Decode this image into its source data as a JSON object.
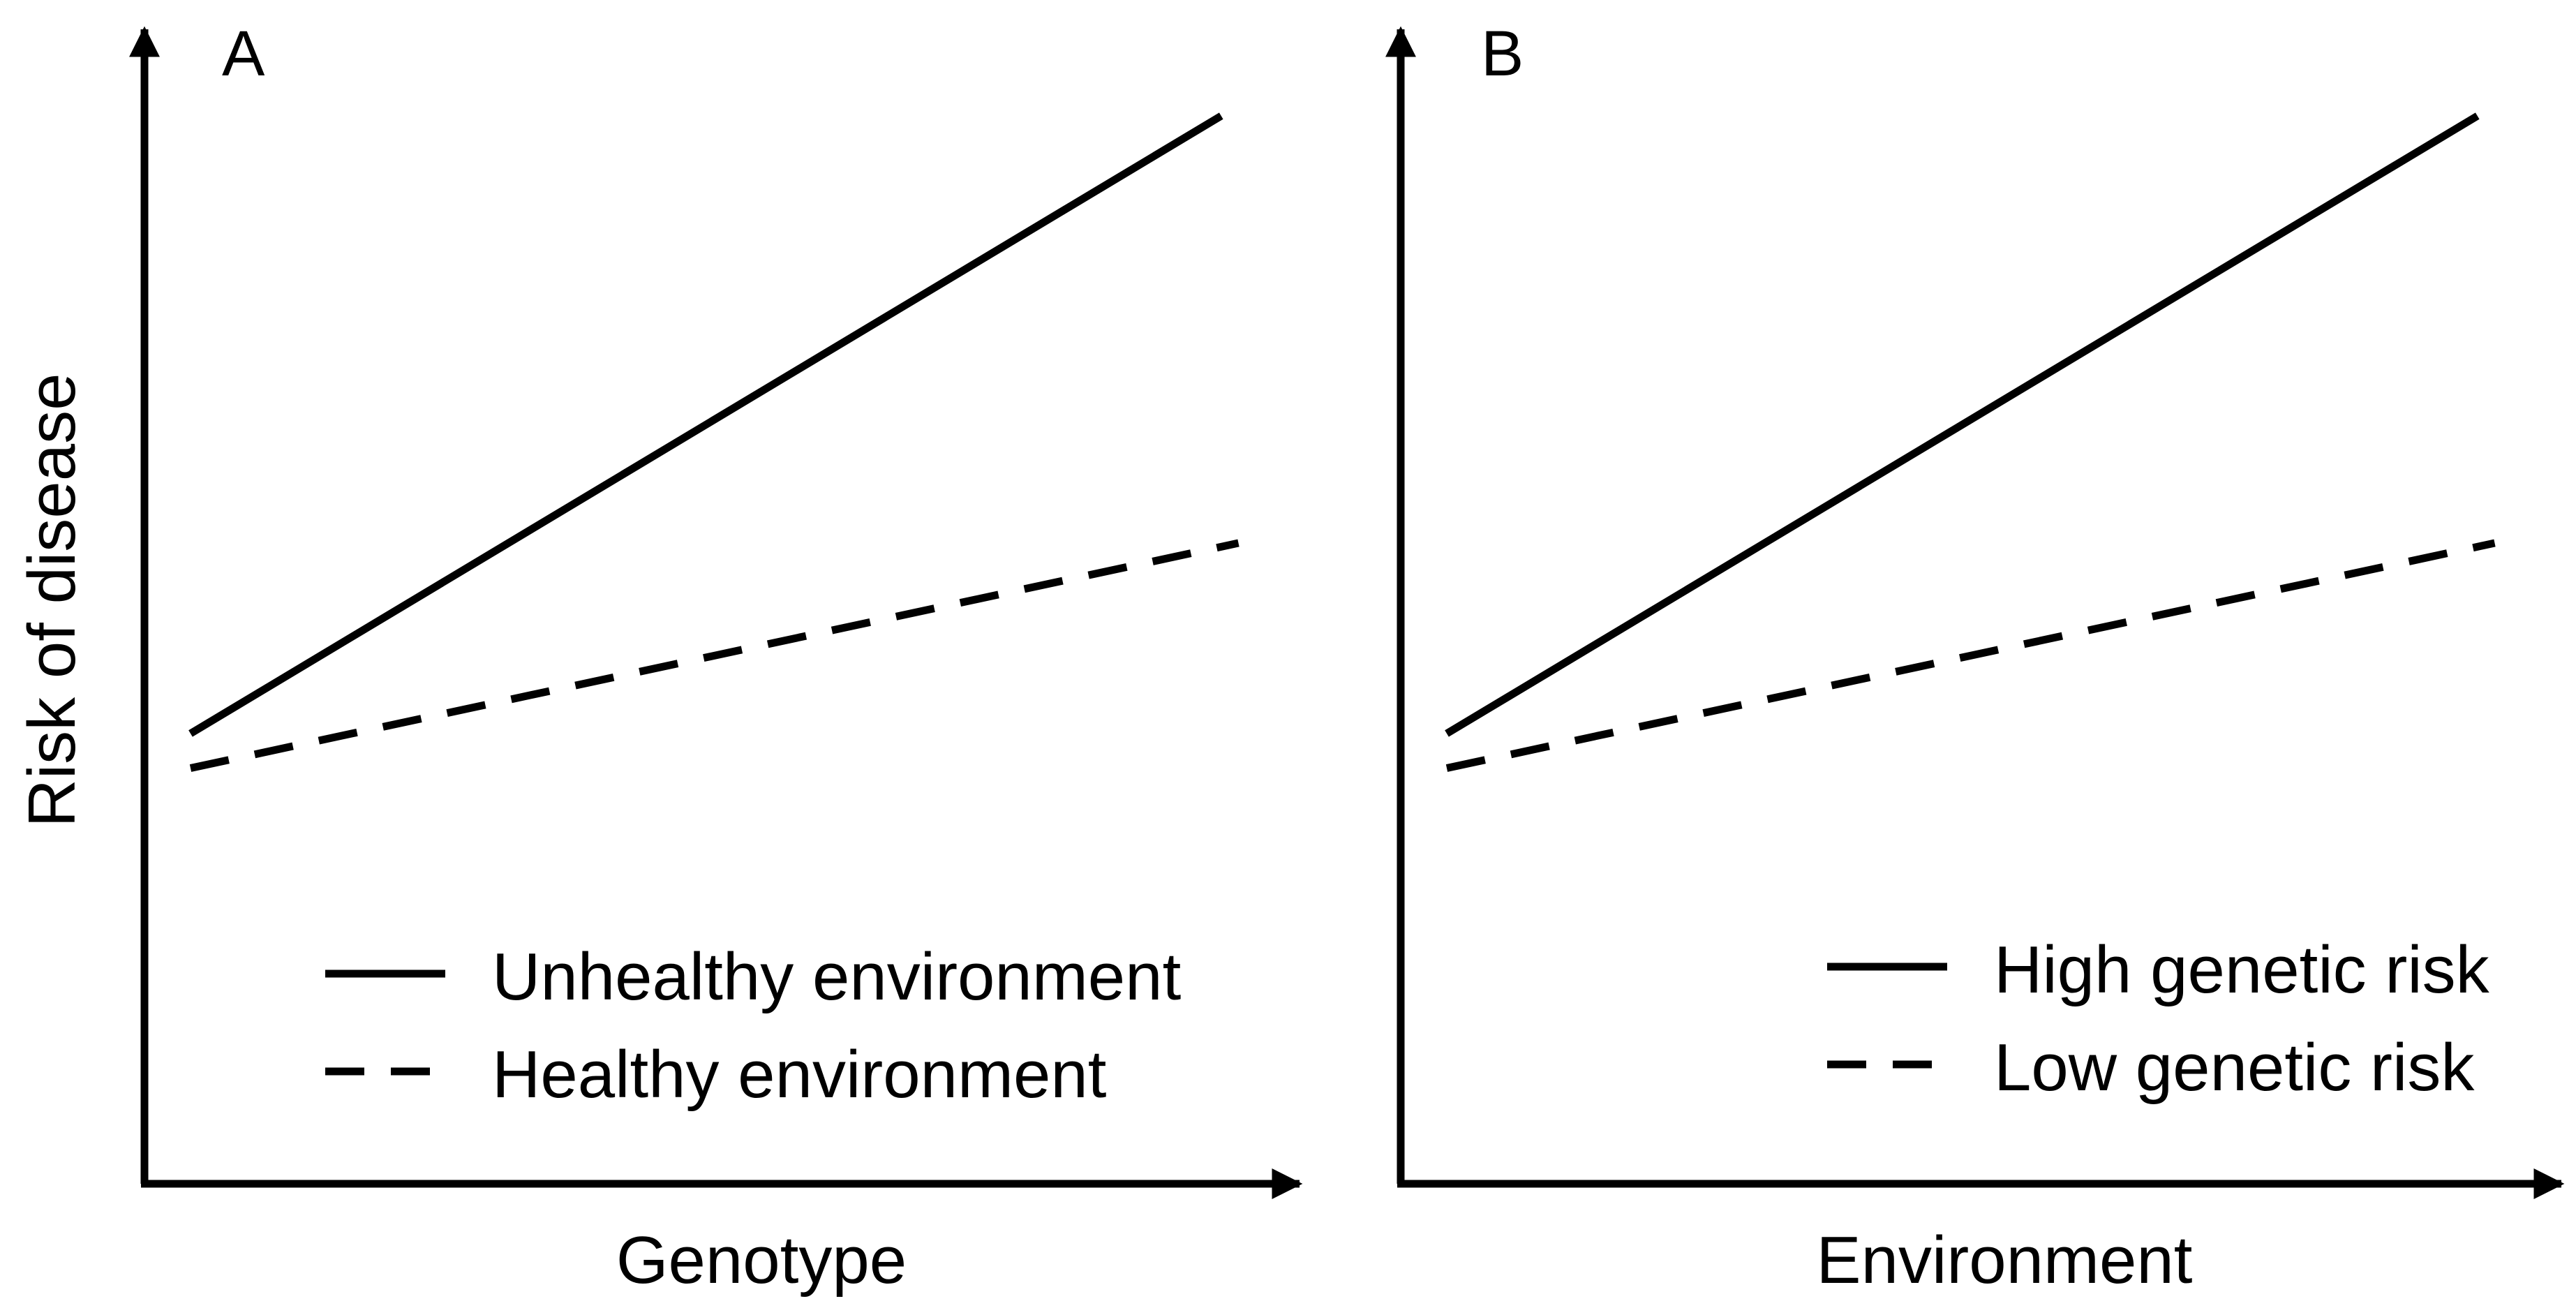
{
  "chart_data": [
    {
      "type": "line",
      "panel_label": "A",
      "xlabel": "Genotype",
      "ylabel": "Risk of disease",
      "xlim": [
        0,
        1
      ],
      "ylim": [
        0,
        1
      ],
      "grid": false,
      "legend_position": "bottom-right",
      "series": [
        {
          "name": "Unhealthy environment",
          "style": "solid",
          "color": "#000000",
          "x": [
            0.04,
            0.935
          ],
          "y": [
            0.39,
            0.925
          ]
        },
        {
          "name": "Healthy environment",
          "style": "dashed",
          "color": "#000000",
          "x": [
            0.04,
            0.95
          ],
          "y": [
            0.36,
            0.555
          ]
        }
      ]
    },
    {
      "type": "line",
      "panel_label": "B",
      "xlabel": "Environment",
      "ylabel": "",
      "xlim": [
        0,
        1
      ],
      "ylim": [
        0,
        1
      ],
      "grid": false,
      "legend_position": "bottom-right",
      "series": [
        {
          "name": "High genetic risk",
          "style": "solid",
          "color": "#000000",
          "x": [
            0.04,
            0.935
          ],
          "y": [
            0.39,
            0.925
          ]
        },
        {
          "name": "Low genetic risk",
          "style": "dashed",
          "color": "#000000",
          "x": [
            0.04,
            0.95
          ],
          "y": [
            0.36,
            0.555
          ]
        }
      ]
    }
  ]
}
